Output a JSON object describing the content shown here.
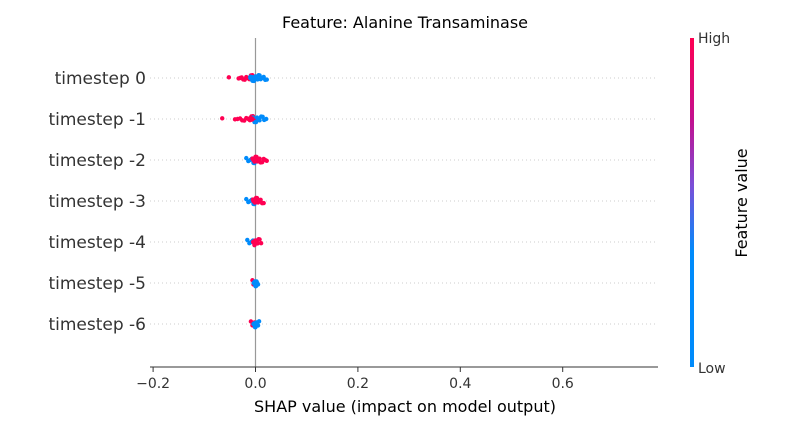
{
  "chart_data": {
    "type": "scatter",
    "title": "Feature: Alanine Transaminase",
    "xlabel": "SHAP value (impact on model output)",
    "ylabel": "",
    "xlim": [
      -0.2,
      0.78
    ],
    "xticks": [
      -0.2,
      0.0,
      0.2,
      0.4,
      0.6
    ],
    "xtick_labels": [
      "−0.2",
      "0.0",
      "0.2",
      "0.4",
      "0.6"
    ],
    "zero_line": 0.0,
    "grid": false,
    "categories": [
      "timestep 0",
      "timestep -1",
      "timestep -2",
      "timestep -3",
      "timestep -4",
      "timestep -5",
      "timestep -6"
    ],
    "colors": {
      "high": "#ff0052",
      "low": "#008bfb",
      "zero_line": "#999999",
      "row_guides": "#cccccc"
    },
    "colorbar": {
      "label": "Feature value",
      "high_label": "High",
      "low_label": "Low"
    },
    "series": [
      {
        "category": "timestep 0",
        "points": [
          [
            -0.052,
            "high"
          ],
          [
            -0.033,
            "high"
          ],
          [
            -0.03,
            "high"
          ],
          [
            -0.027,
            "high"
          ],
          [
            -0.024,
            "high"
          ],
          [
            -0.021,
            "high"
          ],
          [
            -0.018,
            "high"
          ],
          [
            -0.015,
            "high"
          ],
          [
            -0.012,
            "high"
          ],
          [
            -0.009,
            "high"
          ],
          [
            -0.006,
            "high"
          ],
          [
            -0.004,
            "high"
          ],
          [
            -0.002,
            "high"
          ],
          [
            -0.01,
            "low"
          ],
          [
            -0.006,
            "low"
          ],
          [
            -0.003,
            "low"
          ],
          [
            0.0,
            "low"
          ],
          [
            0.002,
            "low"
          ],
          [
            0.004,
            "low"
          ],
          [
            0.006,
            "low"
          ],
          [
            0.008,
            "low"
          ],
          [
            0.01,
            "low"
          ],
          [
            0.013,
            "low"
          ],
          [
            0.016,
            "low"
          ],
          [
            0.019,
            "low"
          ],
          [
            0.022,
            "low"
          ]
        ]
      },
      {
        "category": "timestep -1",
        "points": [
          [
            -0.065,
            "high"
          ],
          [
            -0.04,
            "high"
          ],
          [
            -0.035,
            "high"
          ],
          [
            -0.03,
            "high"
          ],
          [
            -0.026,
            "high"
          ],
          [
            -0.022,
            "high"
          ],
          [
            -0.018,
            "high"
          ],
          [
            -0.014,
            "high"
          ],
          [
            -0.011,
            "high"
          ],
          [
            -0.008,
            "high"
          ],
          [
            -0.005,
            "high"
          ],
          [
            -0.002,
            "high"
          ],
          [
            -0.008,
            "low"
          ],
          [
            -0.005,
            "low"
          ],
          [
            -0.002,
            "low"
          ],
          [
            0.001,
            "low"
          ],
          [
            0.003,
            "low"
          ],
          [
            0.005,
            "low"
          ],
          [
            0.008,
            "low"
          ],
          [
            0.011,
            "low"
          ],
          [
            0.014,
            "low"
          ],
          [
            0.017,
            "low"
          ],
          [
            0.021,
            "low"
          ]
        ]
      },
      {
        "category": "timestep -2",
        "points": [
          [
            -0.018,
            "low"
          ],
          [
            -0.014,
            "low"
          ],
          [
            -0.01,
            "low"
          ],
          [
            -0.007,
            "low"
          ],
          [
            -0.004,
            "low"
          ],
          [
            -0.002,
            "low"
          ],
          [
            -0.006,
            "high"
          ],
          [
            -0.004,
            "high"
          ],
          [
            -0.002,
            "high"
          ],
          [
            0.0,
            "high"
          ],
          [
            0.002,
            "high"
          ],
          [
            0.004,
            "high"
          ],
          [
            0.006,
            "high"
          ],
          [
            0.008,
            "high"
          ],
          [
            0.01,
            "high"
          ],
          [
            0.013,
            "high"
          ],
          [
            0.016,
            "high"
          ],
          [
            0.019,
            "high"
          ],
          [
            0.022,
            "high"
          ]
        ]
      },
      {
        "category": "timestep -3",
        "points": [
          [
            -0.018,
            "low"
          ],
          [
            -0.014,
            "low"
          ],
          [
            -0.01,
            "low"
          ],
          [
            -0.007,
            "low"
          ],
          [
            -0.004,
            "low"
          ],
          [
            -0.002,
            "low"
          ],
          [
            -0.005,
            "high"
          ],
          [
            -0.003,
            "high"
          ],
          [
            -0.001,
            "high"
          ],
          [
            0.001,
            "high"
          ],
          [
            0.003,
            "high"
          ],
          [
            0.005,
            "high"
          ],
          [
            0.007,
            "high"
          ],
          [
            0.01,
            "high"
          ],
          [
            0.013,
            "high"
          ],
          [
            0.016,
            "high"
          ]
        ]
      },
      {
        "category": "timestep -4",
        "points": [
          [
            -0.016,
            "low"
          ],
          [
            -0.012,
            "low"
          ],
          [
            -0.008,
            "low"
          ],
          [
            -0.005,
            "low"
          ],
          [
            -0.002,
            "low"
          ],
          [
            -0.002,
            "high"
          ],
          [
            0.0,
            "high"
          ],
          [
            0.002,
            "high"
          ],
          [
            0.004,
            "high"
          ],
          [
            0.006,
            "high"
          ],
          [
            0.008,
            "high"
          ],
          [
            0.011,
            "high"
          ]
        ]
      },
      {
        "category": "timestep -5",
        "points": [
          [
            -0.006,
            "high"
          ],
          [
            -0.004,
            "high"
          ],
          [
            -0.001,
            "high"
          ],
          [
            -0.001,
            "low"
          ],
          [
            0.0,
            "low"
          ],
          [
            0.001,
            "low"
          ],
          [
            0.002,
            "low"
          ],
          [
            0.003,
            "low"
          ],
          [
            0.005,
            "low"
          ]
        ]
      },
      {
        "category": "timestep -6",
        "points": [
          [
            -0.009,
            "high"
          ],
          [
            -0.006,
            "high"
          ],
          [
            -0.004,
            "high"
          ],
          [
            -0.002,
            "high"
          ],
          [
            -0.001,
            "low"
          ],
          [
            0.0,
            "low"
          ],
          [
            0.002,
            "low"
          ],
          [
            0.003,
            "low"
          ],
          [
            0.005,
            "low"
          ],
          [
            0.007,
            "low"
          ]
        ]
      }
    ]
  }
}
